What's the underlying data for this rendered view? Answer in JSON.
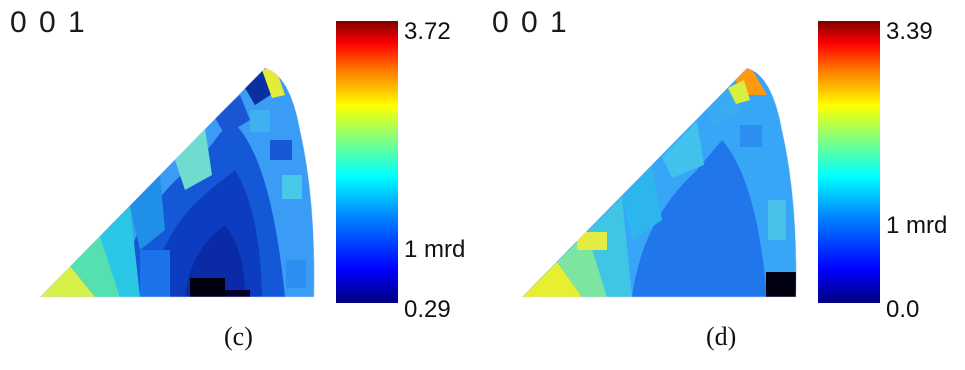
{
  "panels": [
    {
      "direction": "0 0 1",
      "label": "(c)",
      "colorbar": {
        "max": "3.72",
        "mid": "1 mrd",
        "min": "0.29"
      }
    },
    {
      "direction": "0 0 1",
      "label": "(d)",
      "colorbar": {
        "max": "3.39",
        "mid": "1 mrd",
        "min": "0.0"
      }
    }
  ],
  "colors": {
    "colormap": [
      "#00007f",
      "#0000ff",
      "#0080ff",
      "#00ffff",
      "#80ff80",
      "#ffff00",
      "#ff8000",
      "#ff0000",
      "#7f0000"
    ]
  }
}
